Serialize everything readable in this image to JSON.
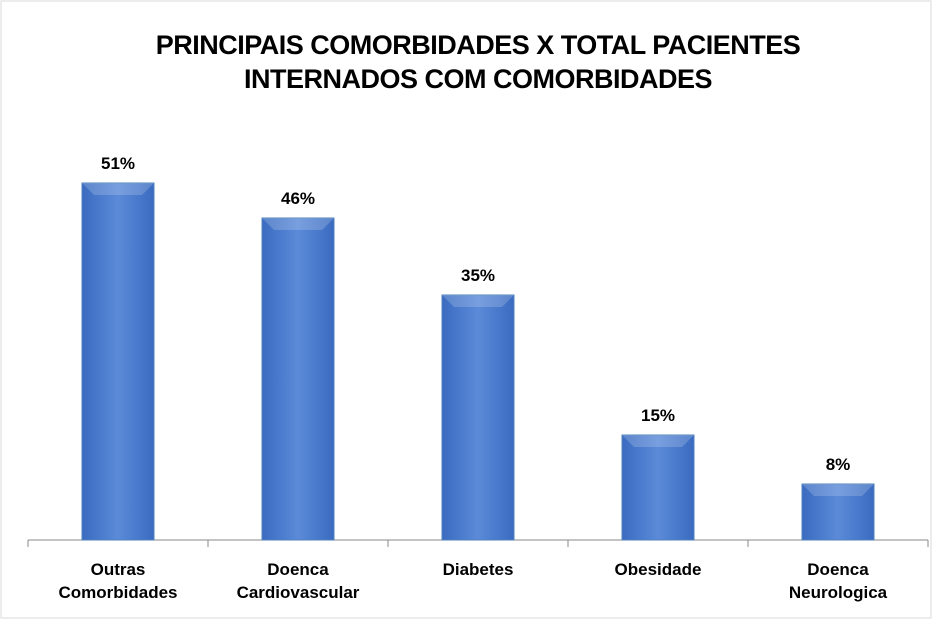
{
  "chart_data": {
    "type": "bar",
    "title": "PRINCIPAIS COMORBIDADES X TOTAL PACIENTES INTERNADOS COM COMORBIDADES",
    "categories": [
      "Outras Comorbidades",
      "Doenca Cardiovascular",
      "Diabetes",
      "Obesidade",
      "Doenca Neurologica"
    ],
    "values": [
      51,
      46,
      35,
      15,
      8
    ],
    "value_labels": [
      "51%",
      "46%",
      "35%",
      "15%",
      "8%"
    ],
    "color": "#4f81bd",
    "ylim": [
      0,
      60
    ]
  }
}
